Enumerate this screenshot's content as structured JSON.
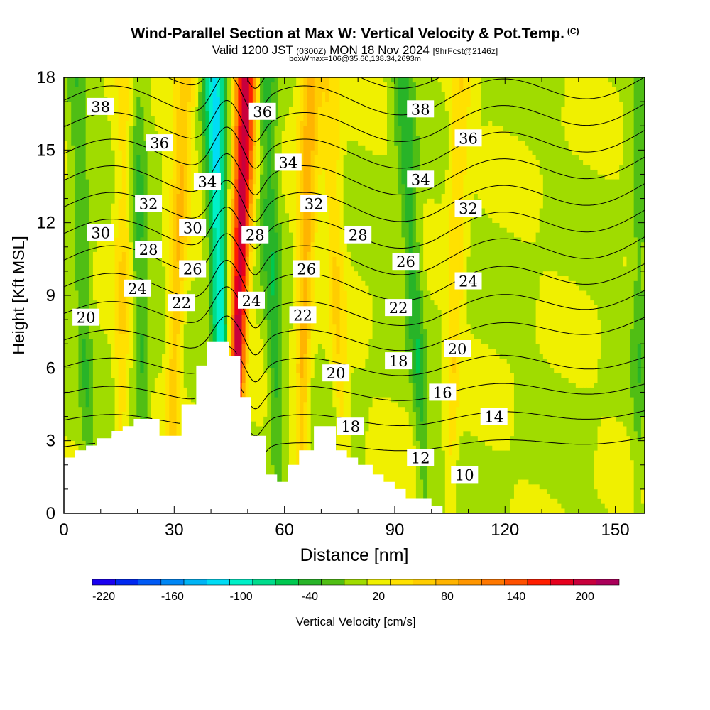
{
  "title": {
    "main": "Wind-Parallel Section at Max W: Vertical Velocity & Pot.Temp.",
    "copyright": "(C)",
    "valid_prefix": "Valid 1200 JST",
    "valid_utc": "(0300Z)",
    "valid_date": "MON 18 Nov 2024",
    "forecast": "[9hrFcst@2146z]",
    "box": "boxWmax=106@35.60,138.34,2693m"
  },
  "colorbar": {
    "label": "Vertical Velocity [cm/s]",
    "tick_labels": [
      "-220",
      "-160",
      "-100",
      "-40",
      "20",
      "80",
      "140",
      "200"
    ],
    "tick_values": [
      -220,
      -160,
      -100,
      -40,
      20,
      80,
      140,
      200
    ],
    "levels": [
      -230,
      -210,
      -190,
      -170,
      -150,
      -130,
      -110,
      -90,
      -70,
      -50,
      -30,
      -10,
      10,
      30,
      50,
      70,
      90,
      110,
      130,
      150,
      170,
      190,
      210,
      230
    ],
    "colors": [
      "#1a00f0",
      "#0028f0",
      "#005af5",
      "#0087f5",
      "#00b4f5",
      "#00dcf5",
      "#00f0c8",
      "#00dc8c",
      "#00c850",
      "#28b428",
      "#50be14",
      "#a0dc00",
      "#f0f000",
      "#ffe100",
      "#ffcd00",
      "#ffb400",
      "#ff9600",
      "#ff7800",
      "#ff5000",
      "#ff1e00",
      "#e6001e",
      "#c8003c",
      "#aa005a",
      "#780078"
    ]
  },
  "chart_data": {
    "type": "heatmap",
    "title": "Wind-Parallel Section at Max W: Vertical Velocity & Pot.Temp.",
    "xlabel": "Distance [nm]",
    "ylabel": "Height [Kft MSL]",
    "xlim": [
      0,
      158
    ],
    "ylim": [
      0,
      18
    ],
    "xticks": [
      0,
      30,
      60,
      90,
      120,
      150
    ],
    "yticks": [
      0,
      3,
      6,
      9,
      12,
      15,
      18
    ],
    "fill_variable": "Vertical Velocity [cm/s]",
    "contour_variable": "Potential Temperature",
    "contour_levels": [
      10,
      12,
      14,
      16,
      18,
      20,
      22,
      24,
      26,
      28,
      30,
      32,
      34,
      36,
      38
    ],
    "contour_labels": [
      {
        "text": "38",
        "x": 10,
        "y": 16.8
      },
      {
        "text": "36",
        "x": 26,
        "y": 15.3
      },
      {
        "text": "34",
        "x": 39,
        "y": 13.7
      },
      {
        "text": "32",
        "x": 23,
        "y": 12.8
      },
      {
        "text": "30",
        "x": 10,
        "y": 11.6
      },
      {
        "text": "30",
        "x": 35,
        "y": 11.8
      },
      {
        "text": "28",
        "x": 23,
        "y": 10.9
      },
      {
        "text": "26",
        "x": 35,
        "y": 10.1
      },
      {
        "text": "24",
        "x": 20,
        "y": 9.3
      },
      {
        "text": "22",
        "x": 32,
        "y": 8.7
      },
      {
        "text": "20",
        "x": 6,
        "y": 8.1
      },
      {
        "text": "36",
        "x": 54,
        "y": 16.6
      },
      {
        "text": "34",
        "x": 61,
        "y": 14.5
      },
      {
        "text": "32",
        "x": 68,
        "y": 12.8
      },
      {
        "text": "28",
        "x": 52,
        "y": 11.5
      },
      {
        "text": "24",
        "x": 51,
        "y": 8.8
      },
      {
        "text": "26",
        "x": 66,
        "y": 10.1
      },
      {
        "text": "22",
        "x": 65,
        "y": 8.2
      },
      {
        "text": "20",
        "x": 74,
        "y": 5.8
      },
      {
        "text": "18",
        "x": 78,
        "y": 3.6
      },
      {
        "text": "28",
        "x": 80,
        "y": 11.5
      },
      {
        "text": "26",
        "x": 93,
        "y": 10.4
      },
      {
        "text": "22",
        "x": 91,
        "y": 8.5
      },
      {
        "text": "18",
        "x": 91,
        "y": 6.3
      },
      {
        "text": "12",
        "x": 97,
        "y": 2.3
      },
      {
        "text": "38",
        "x": 97,
        "y": 16.7
      },
      {
        "text": "34",
        "x": 97,
        "y": 13.8
      },
      {
        "text": "36",
        "x": 110,
        "y": 15.5
      },
      {
        "text": "32",
        "x": 110,
        "y": 12.6
      },
      {
        "text": "24",
        "x": 110,
        "y": 9.6
      },
      {
        "text": "20",
        "x": 107,
        "y": 6.8
      },
      {
        "text": "16",
        "x": 103,
        "y": 5.0
      },
      {
        "text": "14",
        "x": 117,
        "y": 4.0
      },
      {
        "text": "10",
        "x": 109,
        "y": 1.6
      }
    ],
    "terrain": [
      [
        0,
        2.3
      ],
      [
        3,
        2.3
      ],
      [
        3,
        2.6
      ],
      [
        6,
        2.6
      ],
      [
        6,
        2.8
      ],
      [
        9,
        2.8
      ],
      [
        9,
        3.1
      ],
      [
        13,
        3.1
      ],
      [
        13,
        3.4
      ],
      [
        16,
        3.4
      ],
      [
        16,
        3.6
      ],
      [
        19,
        3.6
      ],
      [
        19,
        3.9
      ],
      [
        26,
        3.9
      ],
      [
        26,
        3.2
      ],
      [
        32,
        3.2
      ],
      [
        32,
        4.5
      ],
      [
        36,
        4.5
      ],
      [
        36,
        6.1
      ],
      [
        39,
        6.1
      ],
      [
        39,
        7.1
      ],
      [
        45,
        7.1
      ],
      [
        45,
        6.5
      ],
      [
        48,
        6.5
      ],
      [
        48,
        4.8
      ],
      [
        51,
        4.8
      ],
      [
        51,
        3.2
      ],
      [
        55,
        3.2
      ],
      [
        55,
        1.6
      ],
      [
        58,
        1.6
      ],
      [
        58,
        1.3
      ],
      [
        61,
        1.3
      ],
      [
        61,
        2.0
      ],
      [
        64,
        2.0
      ],
      [
        64,
        2.6
      ],
      [
        68,
        2.6
      ],
      [
        68,
        3.6
      ],
      [
        74,
        3.6
      ],
      [
        74,
        2.6
      ],
      [
        77,
        2.6
      ],
      [
        77,
        2.3
      ],
      [
        80,
        2.3
      ],
      [
        80,
        2.0
      ],
      [
        84,
        2.0
      ],
      [
        84,
        1.6
      ],
      [
        87,
        1.6
      ],
      [
        87,
        1.3
      ],
      [
        90,
        1.3
      ],
      [
        90,
        1.0
      ],
      [
        93,
        1.0
      ],
      [
        93,
        0.6
      ],
      [
        100,
        0.6
      ],
      [
        100,
        0.3
      ],
      [
        103,
        0.3
      ],
      [
        103,
        0.0
      ]
    ],
    "updraft_bands": [
      {
        "x_bottom": 46.0,
        "x_top": 49.5,
        "peak_w": 200
      },
      {
        "x_bottom": 64.0,
        "x_top": 67.0,
        "peak_w": 70
      },
      {
        "x_bottom": 28.5,
        "x_top": 33.0,
        "peak_w": 60
      },
      {
        "x_bottom": 15.0,
        "x_top": 17.0,
        "peak_w": 40
      },
      {
        "x_bottom": 76.5,
        "x_top": 72.0,
        "peak_w": 40
      },
      {
        "x_bottom": 105.0,
        "x_top": 108.0,
        "peak_w": 40
      }
    ],
    "downdraft_bands": [
      {
        "x_bottom": 43.5,
        "x_top": 41.0,
        "peak_w": -120
      },
      {
        "x_bottom": 58.5,
        "x_top": 55.0,
        "peak_w": -50
      },
      {
        "x_bottom": 22.0,
        "x_top": 19.5,
        "peak_w": -40
      },
      {
        "x_bottom": 98.5,
        "x_top": 92.0,
        "peak_w": -50
      },
      {
        "x_bottom": 7.0,
        "x_top": 3.5,
        "peak_w": -35
      },
      {
        "x_bottom": 156.0,
        "x_top": 157.0,
        "peak_w": -30
      }
    ]
  }
}
